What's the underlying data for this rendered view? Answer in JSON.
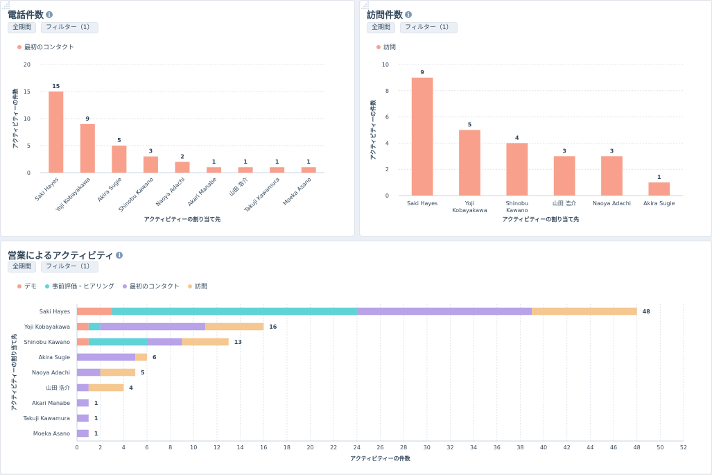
{
  "colors": {
    "salmon": "#f8a08c",
    "teal": "#5fd3d6",
    "purple": "#b8a2e8",
    "orange": "#f5c791",
    "axis": "#cbd6e2",
    "grid": "#dfe3eb",
    "text": "#33475b"
  },
  "calls_card": {
    "title": "電話件数",
    "filter_all": "全期間",
    "filter_label": "フィルター（1）",
    "info_icon": "info-icon"
  },
  "visits_card": {
    "title": "訪問件数",
    "filter_all": "全期間",
    "filter_label": "フィルター（1）",
    "info_icon": "info-icon"
  },
  "sales_card": {
    "title": "営業によるアクティビティ",
    "filter_all": "全期間",
    "filter_label": "フィルター（1）",
    "info_icon": "info-icon"
  },
  "chart_data": [
    {
      "id": "calls",
      "type": "bar",
      "categories": [
        "Saki Hayes",
        "Yoji Kobayakawa",
        "Akira Sugie",
        "Shinobu Kawano",
        "Naoya Adachi",
        "Akari Manabe",
        "山田 浩介",
        "Takuji Kawamura",
        "Moeka Asano"
      ],
      "series": [
        {
          "name": "最初のコンタクト",
          "values": [
            15,
            9,
            5,
            3,
            2,
            1,
            1,
            1,
            1
          ],
          "color": "#f8a08c"
        }
      ],
      "xlabel": "アクティビティーの割り当て先",
      "ylabel": "アクティビティーの件数",
      "ylim": [
        0,
        20
      ],
      "yticks": [
        0,
        5,
        10,
        15,
        20
      ],
      "grid": true,
      "legend": "top-left"
    },
    {
      "id": "visits",
      "type": "bar",
      "categories": [
        "Saki Hayes",
        "Yoji Kobayakawa",
        "Shinobu Kawano",
        "山田 浩介",
        "Naoya Adachi",
        "Akira Sugie"
      ],
      "series": [
        {
          "name": "訪問",
          "values": [
            9,
            5,
            4,
            3,
            3,
            1
          ],
          "color": "#f8a08c"
        }
      ],
      "xlabel": "アクティビティーの割り当て先",
      "ylabel": "アクティビティーの件数",
      "ylim": [
        0,
        10
      ],
      "yticks": [
        0,
        2,
        4,
        6,
        8,
        10
      ],
      "grid": true,
      "legend": "top-left"
    },
    {
      "id": "sales",
      "type": "bar",
      "orientation": "horizontal",
      "stacked": true,
      "categories": [
        "Saki Hayes",
        "Yoji Kobayakawa",
        "Shinobu Kawano",
        "Akira Sugie",
        "Naoya Adachi",
        "山田 浩介",
        "Akari Manabe",
        "Takuji Kawamura",
        "Moeka Asano"
      ],
      "series": [
        {
          "name": "デモ",
          "values": [
            3,
            1,
            1,
            0,
            0,
            0,
            0,
            0,
            0
          ],
          "color": "#f8a08c"
        },
        {
          "name": "事前評価・ヒアリング",
          "values": [
            21,
            1,
            5,
            0,
            0,
            0,
            0,
            0,
            0
          ],
          "color": "#5fd3d6"
        },
        {
          "name": "最初のコンタクト",
          "values": [
            15,
            9,
            3,
            5,
            2,
            1,
            1,
            1,
            1
          ],
          "color": "#b8a2e8"
        },
        {
          "name": "訪問",
          "values": [
            9,
            5,
            4,
            1,
            3,
            3,
            0,
            0,
            0
          ],
          "color": "#f5c791"
        }
      ],
      "totals": [
        48,
        16,
        13,
        6,
        5,
        4,
        1,
        1,
        1
      ],
      "xlabel": "アクティビティーの件数",
      "ylabel": "アクティビティーの割り当て先",
      "xlim": [
        0,
        52
      ],
      "xticks": [
        0,
        2,
        4,
        6,
        8,
        10,
        12,
        14,
        16,
        18,
        20,
        22,
        24,
        26,
        28,
        30,
        32,
        34,
        36,
        38,
        40,
        42,
        44,
        46,
        48,
        50,
        52
      ],
      "grid": true,
      "legend": "top-left"
    }
  ]
}
